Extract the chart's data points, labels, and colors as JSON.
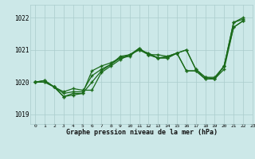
{
  "background_color": "#cce8e8",
  "grid_color": "#aacccc",
  "line_color": "#1a6b1a",
  "xlabel": "Graphe pression niveau de la mer (hPa)",
  "xlim": [
    -0.5,
    23
  ],
  "ylim": [
    1018.7,
    1022.4
  ],
  "yticks": [
    1019,
    1020,
    1021,
    1022
  ],
  "xticks": [
    0,
    1,
    2,
    3,
    4,
    5,
    6,
    7,
    8,
    9,
    10,
    11,
    12,
    13,
    14,
    15,
    16,
    17,
    18,
    19,
    20,
    21,
    22,
    23
  ],
  "line1": [
    1020.0,
    1020.05,
    1019.85,
    1019.55,
    1019.6,
    1019.65,
    1020.0,
    1020.35,
    1020.55,
    1020.75,
    1020.8,
    1021.05,
    1020.85,
    1020.75,
    1020.75,
    1020.9,
    1020.35,
    1020.35,
    1020.1,
    1020.1,
    1020.5,
    1021.85,
    1022.0
  ],
  "line2": [
    1020.0,
    1020.05,
    1019.85,
    1019.55,
    1019.65,
    1019.65,
    1020.35,
    1020.5,
    1020.6,
    1020.75,
    1020.85,
    1021.05,
    1020.85,
    1020.75,
    1020.75,
    1020.9,
    1020.35,
    1020.35,
    1020.1,
    1020.1,
    1020.5,
    1021.85,
    1021.95
  ],
  "line3": [
    1020.0,
    1020.0,
    1019.85,
    1019.7,
    1019.8,
    1019.75,
    1019.75,
    1020.3,
    1020.5,
    1020.7,
    1020.85,
    1021.0,
    1020.85,
    1020.85,
    1020.8,
    1020.9,
    1021.0,
    1020.4,
    1020.15,
    1020.15,
    1020.5,
    1021.7,
    1021.9
  ],
  "line4": [
    1020.0,
    1020.0,
    1019.85,
    1019.65,
    1019.7,
    1019.7,
    1020.2,
    1020.4,
    1020.55,
    1020.8,
    1020.85,
    1021.0,
    1020.9,
    1020.75,
    1020.8,
    1020.9,
    1021.0,
    1020.4,
    1020.15,
    1020.1,
    1020.4,
    1021.7,
    1021.9
  ]
}
